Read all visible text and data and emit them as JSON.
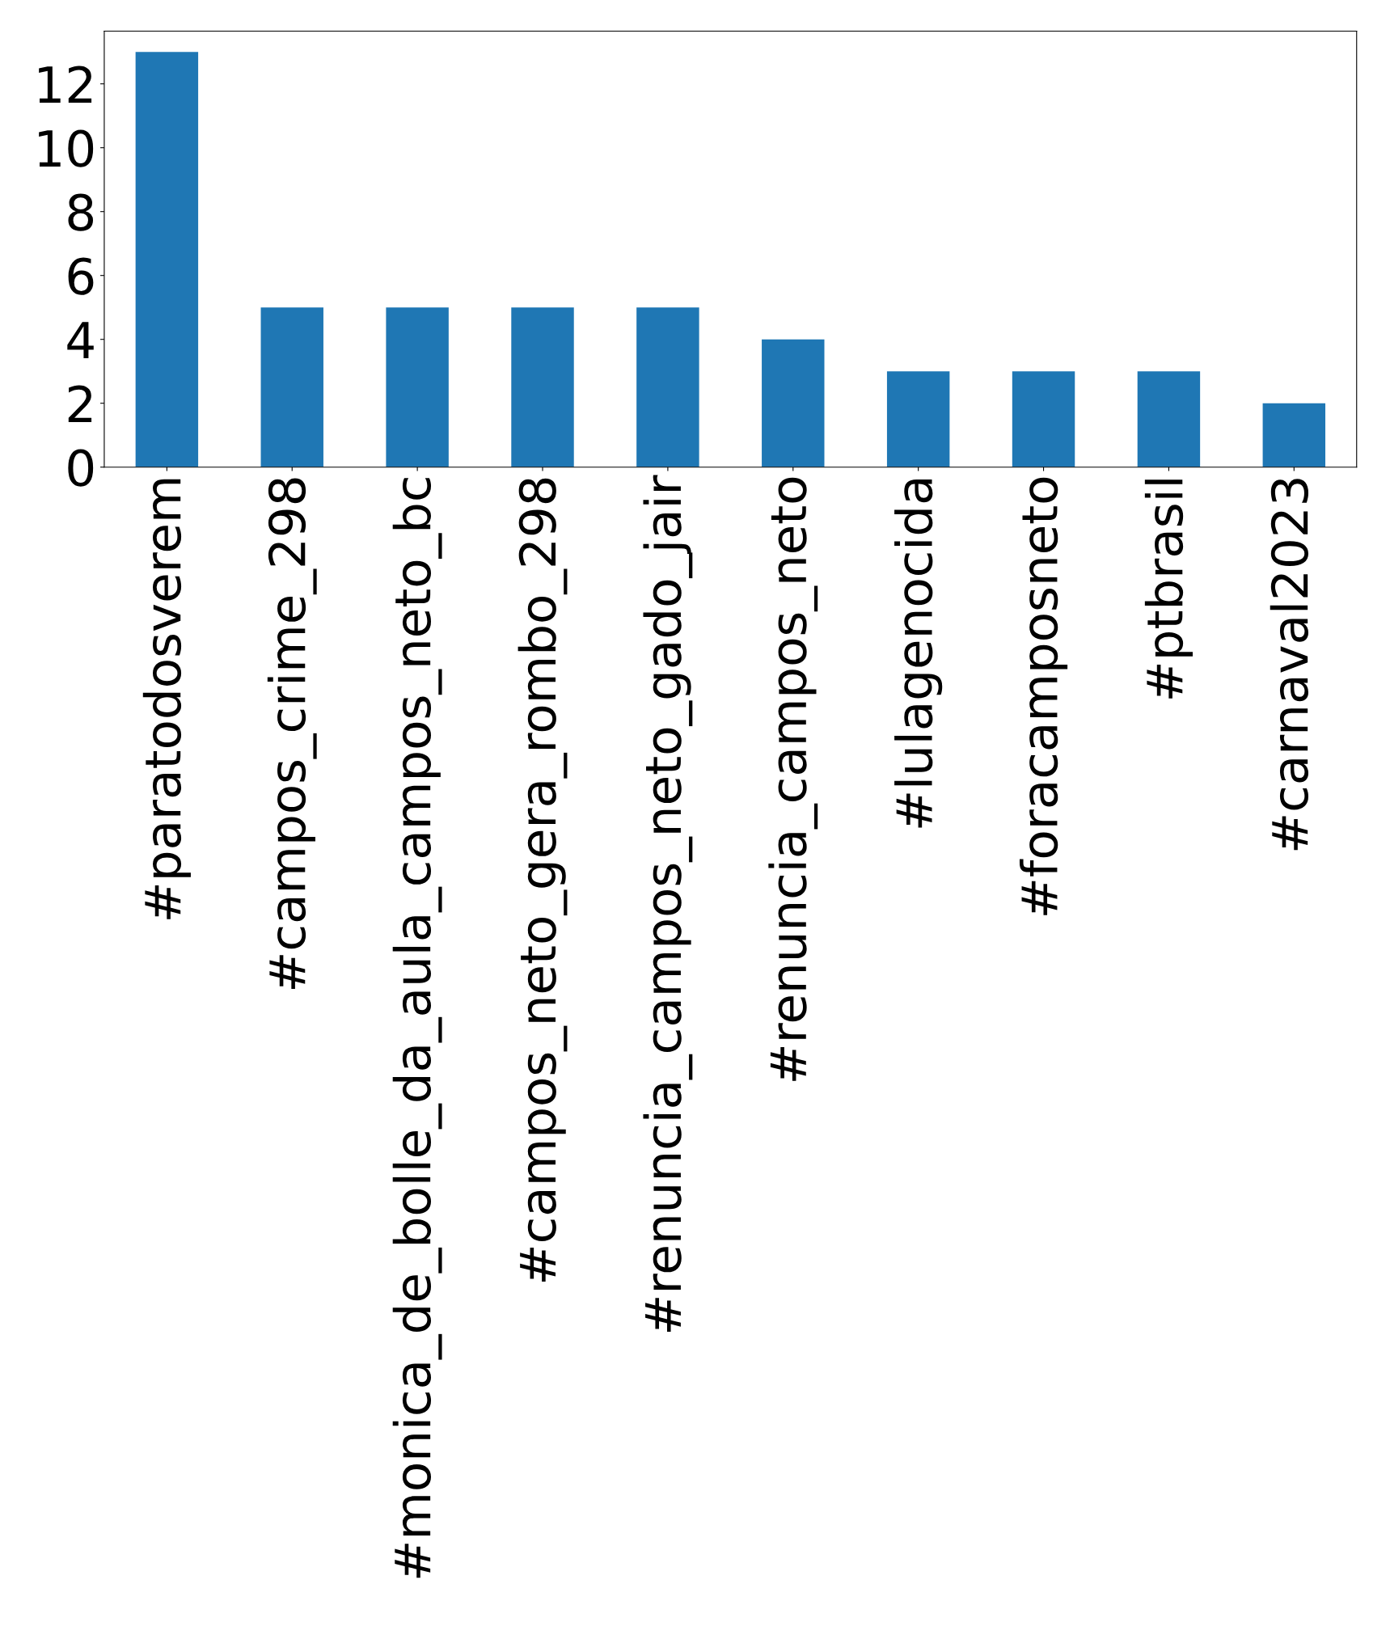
{
  "chart_data": {
    "type": "bar",
    "categories": [
      "#paratodosverem",
      "#campos_crime_298",
      "#monica_de_bolle_da_aula_campos_neto_bc",
      "#campos_neto_gera_rombo_298",
      "#renuncia_campos_neto_gado_jair",
      "#renuncia_campos_neto",
      "#lulagenocida",
      "#foracamposneto",
      "#ptbrasil",
      "#carnaval2023"
    ],
    "values": [
      13,
      5,
      5,
      5,
      5,
      4,
      3,
      3,
      3,
      2
    ],
    "color": "#1f77b4",
    "ylim": [
      0,
      13.65
    ],
    "yticks": [
      0,
      2,
      4,
      6,
      8,
      10,
      12
    ],
    "grid": false,
    "legend": false
  }
}
